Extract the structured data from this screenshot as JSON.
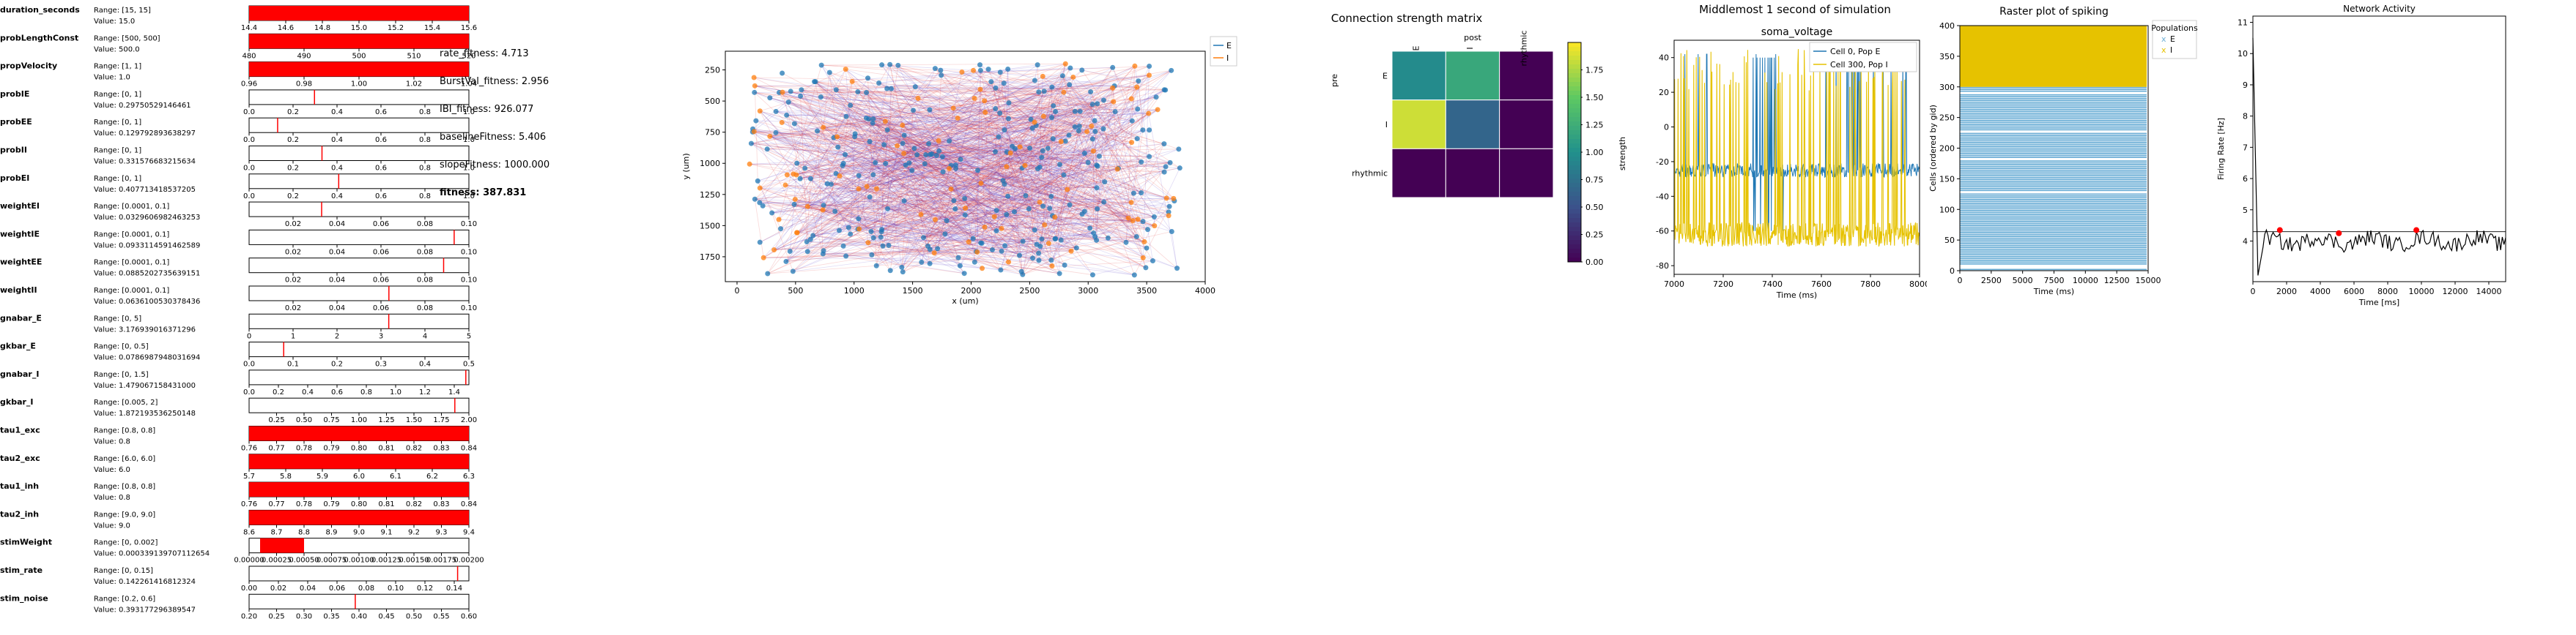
{
  "params": [
    {
      "name": "duration_seconds",
      "range": "Range: [15, 15]",
      "value": "Value: 15.0",
      "lo": 15,
      "hi": 15,
      "v": 15,
      "full": true,
      "ticks": [
        "14.4",
        "14.6",
        "14.8",
        "15.0",
        "15.2",
        "15.4",
        "15.6"
      ],
      "tmin": 14.4,
      "tmax": 15.6
    },
    {
      "name": "probLengthConst",
      "range": "Range: [500, 500]",
      "value": "Value: 500.0",
      "lo": 500,
      "hi": 500,
      "v": 500,
      "full": true,
      "ticks": [
        "480",
        "490",
        "500",
        "510",
        "520"
      ],
      "tmin": 480,
      "tmax": 520
    },
    {
      "name": "propVelocity",
      "range": "Range: [1, 1]",
      "value": "Value: 1.0",
      "lo": 1,
      "hi": 1,
      "v": 1,
      "full": true,
      "ticks": [
        "0.96",
        "0.98",
        "1.00",
        "1.02",
        "1.04"
      ],
      "tmin": 0.96,
      "tmax": 1.04
    },
    {
      "name": "probIE",
      "range": "Range: [0, 1]",
      "value": "Value: 0.29750529146461",
      "lo": 0,
      "hi": 1,
      "v": 0.2975,
      "ticks": [
        "0.0",
        "0.2",
        "0.4",
        "0.6",
        "0.8",
        "1.0"
      ],
      "tmin": 0,
      "tmax": 1
    },
    {
      "name": "probEE",
      "range": "Range: [0, 1]",
      "value": "Value: 0.129792893638297",
      "lo": 0,
      "hi": 1,
      "v": 0.1298,
      "ticks": [
        "0.0",
        "0.2",
        "0.4",
        "0.6",
        "0.8",
        "1.0"
      ],
      "tmin": 0,
      "tmax": 1
    },
    {
      "name": "probII",
      "range": "Range: [0, 1]",
      "value": "Value: 0.331576683215634",
      "lo": 0,
      "hi": 1,
      "v": 0.3316,
      "ticks": [
        "0.0",
        "0.2",
        "0.4",
        "0.6",
        "0.8",
        "1.0"
      ],
      "tmin": 0,
      "tmax": 1
    },
    {
      "name": "probEI",
      "range": "Range: [0, 1]",
      "value": "Value: 0.407713418537205",
      "lo": 0,
      "hi": 1,
      "v": 0.4077,
      "ticks": [
        "0.0",
        "0.2",
        "0.4",
        "0.6",
        "0.8",
        "1.0"
      ],
      "tmin": 0,
      "tmax": 1
    },
    {
      "name": "weightEI",
      "range": "Range: [0.0001, 0.1]",
      "value": "Value: 0.0329606982463253",
      "lo": 0.0001,
      "hi": 0.1,
      "v": 0.033,
      "ticks": [
        "0.02",
        "0.04",
        "0.06",
        "0.08",
        "0.10"
      ],
      "tmin": 0,
      "tmax": 0.1
    },
    {
      "name": "weightIE",
      "range": "Range: [0.0001, 0.1]",
      "value": "Value: 0.0933114591462589",
      "lo": 0.0001,
      "hi": 0.1,
      "v": 0.0933,
      "ticks": [
        "0.02",
        "0.04",
        "0.06",
        "0.08",
        "0.10"
      ],
      "tmin": 0,
      "tmax": 0.1
    },
    {
      "name": "weightEE",
      "range": "Range: [0.0001, 0.1]",
      "value": "Value: 0.0885202735639151",
      "lo": 0.0001,
      "hi": 0.1,
      "v": 0.0885,
      "ticks": [
        "0.02",
        "0.04",
        "0.06",
        "0.08",
        "0.10"
      ],
      "tmin": 0,
      "tmax": 0.1
    },
    {
      "name": "weightII",
      "range": "Range: [0.0001, 0.1]",
      "value": "Value: 0.0636100530378436",
      "lo": 0.0001,
      "hi": 0.1,
      "v": 0.0636,
      "ticks": [
        "0.02",
        "0.04",
        "0.06",
        "0.08",
        "0.10"
      ],
      "tmin": 0,
      "tmax": 0.1
    },
    {
      "name": "gnabar_E",
      "range": "Range: [0, 5]",
      "value": "Value: 3.176939016371296",
      "lo": 0,
      "hi": 5,
      "v": 3.177,
      "ticks": [
        "0",
        "1",
        "2",
        "3",
        "4",
        "5"
      ],
      "tmin": 0,
      "tmax": 5
    },
    {
      "name": "gkbar_E",
      "range": "Range: [0, 0.5]",
      "value": "Value: 0.0786987948031694",
      "lo": 0,
      "hi": 0.5,
      "v": 0.0787,
      "ticks": [
        "0.0",
        "0.1",
        "0.2",
        "0.3",
        "0.4",
        "0.5"
      ],
      "tmin": 0,
      "tmax": 0.5
    },
    {
      "name": "gnabar_I",
      "range": "Range: [0, 1.5]",
      "value": "Value: 1.479067158431000",
      "lo": 0,
      "hi": 1.5,
      "v": 1.479,
      "ticks": [
        "0.0",
        "0.2",
        "0.4",
        "0.6",
        "0.8",
        "1.0",
        "1.2",
        "1.4"
      ],
      "tmin": 0,
      "tmax": 1.5
    },
    {
      "name": "gkbar_I",
      "range": "Range: [0.005, 2]",
      "value": "Value: 1.872193536250148",
      "lo": 0.005,
      "hi": 2,
      "v": 1.872,
      "ticks": [
        "0.25",
        "0.50",
        "0.75",
        "1.00",
        "1.25",
        "1.50",
        "1.75",
        "2.00"
      ],
      "tmin": 0,
      "tmax": 2
    },
    {
      "name": "tau1_exc",
      "range": "Range: [0.8, 0.8]",
      "value": "Value: 0.8",
      "lo": 0.8,
      "hi": 0.8,
      "v": 0.8,
      "full": true,
      "ticks": [
        "0.76",
        "0.77",
        "0.78",
        "0.79",
        "0.80",
        "0.81",
        "0.82",
        "0.83",
        "0.84"
      ],
      "tmin": 0.76,
      "tmax": 0.84
    },
    {
      "name": "tau2_exc",
      "range": "Range: [6.0, 6.0]",
      "value": "Value: 6.0",
      "lo": 6,
      "hi": 6,
      "v": 6,
      "full": true,
      "ticks": [
        "5.7",
        "5.8",
        "5.9",
        "6.0",
        "6.1",
        "6.2",
        "6.3"
      ],
      "tmin": 5.7,
      "tmax": 6.3
    },
    {
      "name": "tau1_inh",
      "range": "Range: [0.8, 0.8]",
      "value": "Value: 0.8",
      "lo": 0.8,
      "hi": 0.8,
      "v": 0.8,
      "full": true,
      "ticks": [
        "0.76",
        "0.77",
        "0.78",
        "0.79",
        "0.80",
        "0.81",
        "0.82",
        "0.83",
        "0.84"
      ],
      "tmin": 0.76,
      "tmax": 0.84
    },
    {
      "name": "tau2_inh",
      "range": "Range: [9.0, 9.0]",
      "value": "Value: 9.0",
      "lo": 9,
      "hi": 9,
      "v": 9,
      "full": true,
      "ticks": [
        "8.6",
        "8.7",
        "8.8",
        "8.9",
        "9.0",
        "9.1",
        "9.2",
        "9.3",
        "9.4"
      ],
      "tmin": 8.6,
      "tmax": 9.4
    },
    {
      "name": "stimWeight",
      "range": "Range: [0, 0.002]",
      "value": "Value: 0.000339139707112654",
      "lo": 0,
      "hi": 0.002,
      "v": 0.000339,
      "ticks": [
        "0.00000",
        "0.00025",
        "0.00050",
        "0.00075",
        "0.00100",
        "0.00125",
        "0.00150",
        "0.00175",
        "0.00200"
      ],
      "tmin": 0,
      "tmax": 0.002,
      "band": [
        0.0001,
        0.0005
      ]
    },
    {
      "name": "stim_rate",
      "range": "Range: [0, 0.15]",
      "value": "Value: 0.142261416812324",
      "lo": 0,
      "hi": 0.15,
      "v": 0.1423,
      "ticks": [
        "0.00",
        "0.02",
        "0.04",
        "0.06",
        "0.08",
        "0.10",
        "0.12",
        "0.14"
      ],
      "tmin": 0,
      "tmax": 0.15
    },
    {
      "name": "stim_noise",
      "range": "Range: [0.2, 0.6]",
      "value": "Value: 0.393177296389547",
      "lo": 0.2,
      "hi": 0.6,
      "v": 0.3932,
      "ticks": [
        "0.20",
        "0.25",
        "0.30",
        "0.35",
        "0.40",
        "0.45",
        "0.50",
        "0.55",
        "0.60"
      ],
      "tmin": 0.2,
      "tmax": 0.6
    }
  ],
  "fitness": [
    {
      "label": "rate_fitness: 4.713",
      "bold": false
    },
    {
      "label": "BurstVal_fitness: 2.956",
      "bold": false
    },
    {
      "label": "IBI_fitness: 926.077",
      "bold": false
    },
    {
      "label": "baselineFitness: 5.406",
      "bold": false
    },
    {
      "label": "slopeFitness: 1000.000",
      "bold": false
    },
    {
      "label": "fitness: 387.831",
      "bold": true
    }
  ],
  "colors": {
    "red": "#ff0000",
    "blue": "#1f77b4",
    "orange": "#ff7f0e",
    "spikeE": "#6baed6",
    "spikeI": "#e6c200"
  },
  "network": {
    "xlabel": "x (um)",
    "ylabel": "y (um)",
    "xticks": [
      0,
      500,
      1000,
      1500,
      2000,
      2500,
      3000,
      3500,
      4000
    ],
    "yticks": [
      250,
      500,
      750,
      1000,
      1250,
      1500,
      1750
    ],
    "xlim": [
      -100,
      4000
    ],
    "ylim": [
      100,
      1950
    ],
    "legend": [
      "E",
      "I"
    ],
    "nE": 300,
    "nI": 100
  },
  "chart_data": [
    {
      "type": "heatmap",
      "title": "Connection strength matrix",
      "xlabel": "post",
      "ylabel": "pre",
      "colorbar_label": "strength",
      "rows": [
        "E",
        "I",
        "rhythmic"
      ],
      "cols": [
        "E",
        "I",
        "rhythmic"
      ],
      "values": [
        [
          0.95,
          1.2,
          0.0
        ],
        [
          1.85,
          0.65,
          0.0
        ],
        [
          0.0,
          0.0,
          0.0
        ]
      ],
      "clim": [
        0,
        2
      ],
      "colorbar_ticks": [
        "0.00",
        "0.25",
        "0.50",
        "0.75",
        "1.00",
        "1.25",
        "1.50",
        "1.75"
      ]
    },
    {
      "type": "line",
      "suptitle": "Middlemost 1 second of simulation",
      "title": "soma_voltage",
      "xlabel": "Time (ms)",
      "ylabel": "",
      "xlim": [
        7000,
        8000
      ],
      "ylim": [
        -85,
        50
      ],
      "xticks": [
        7000,
        7200,
        7400,
        7600,
        7800,
        8000
      ],
      "yticks": [
        40,
        20,
        0,
        -20,
        -40,
        -60,
        -80
      ],
      "series": [
        {
          "name": "Cell 0, Pop E",
          "baseline": -25
        },
        {
          "name": "Cell 300, Pop I",
          "baseline": -60
        }
      ]
    },
    {
      "type": "scatter",
      "title": "Raster plot of spiking",
      "xlabel": "Time (ms)",
      "ylabel": "Cells (ordered by gid)",
      "xlim": [
        0,
        15000
      ],
      "ylim": [
        0,
        400
      ],
      "xticks": [
        0,
        2500,
        5000,
        7500,
        10000,
        12500,
        15000
      ],
      "yticks": [
        0,
        50,
        100,
        150,
        200,
        250,
        300,
        350,
        400
      ],
      "legend_title": "Populations",
      "legend": [
        "E",
        "I"
      ]
    },
    {
      "type": "line",
      "title": "Network Activity",
      "xlabel": "Time [ms]",
      "ylabel": "Firing Rate [Hz]",
      "xlim": [
        0,
        15000
      ],
      "ylim": [
        2.7,
        11.2
      ],
      "xticks": [
        0,
        2000,
        4000,
        6000,
        8000,
        10000,
        12000,
        14000
      ],
      "yticks": [
        4,
        5,
        6,
        7,
        8,
        9,
        10,
        11
      ],
      "baseline": 4.3,
      "burst_peaks": [
        [
          1600,
          4.35
        ],
        [
          5100,
          4.25
        ],
        [
          9700,
          4.35
        ]
      ]
    }
  ]
}
